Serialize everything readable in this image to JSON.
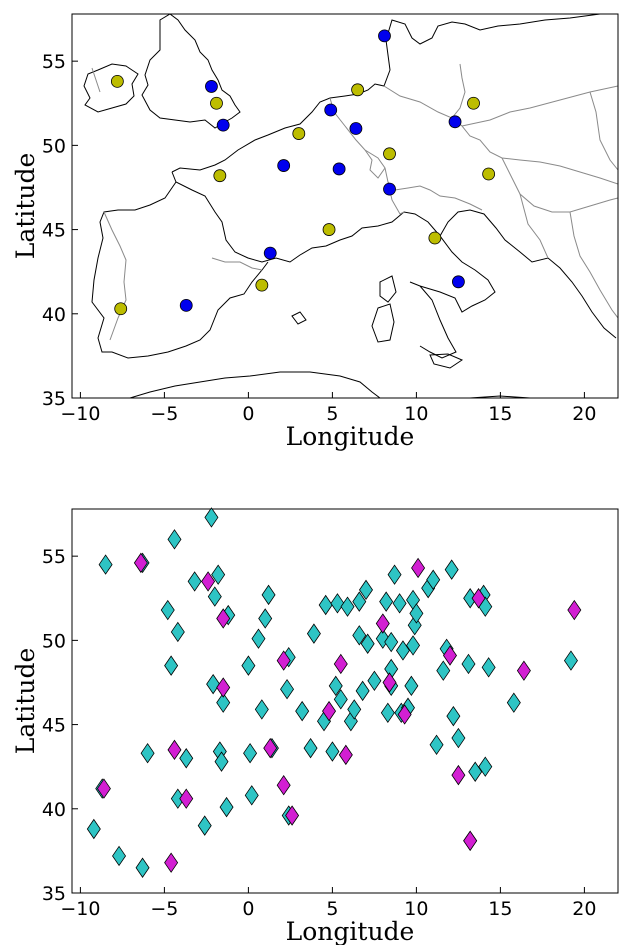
{
  "chart_data": [
    {
      "type": "scatter",
      "title": "",
      "xlabel": "Longitude",
      "ylabel": "Latitude",
      "xlim": [
        -10.5,
        22
      ],
      "ylim": [
        35,
        57.8
      ],
      "xticks": [
        "−10",
        "−5",
        "0",
        "5",
        "10",
        "15",
        "20"
      ],
      "yticks": [
        "35",
        "40",
        "45",
        "50",
        "55"
      ],
      "background_map": "Western and Central Europe coastlines (black) and national borders (grey)",
      "series": [
        {
          "marker": "circle",
          "color": "#0000ee",
          "points": [
            [
              -2.2,
              53.5
            ],
            [
              -1.5,
              51.2
            ],
            [
              2.1,
              48.8
            ],
            [
              4.9,
              52.1
            ],
            [
              6.4,
              51.0
            ],
            [
              8.1,
              56.5
            ],
            [
              12.3,
              51.4
            ],
            [
              5.4,
              48.6
            ],
            [
              8.4,
              47.4
            ],
            [
              1.3,
              43.6
            ],
            [
              -3.7,
              40.5
            ],
            [
              12.5,
              41.9
            ]
          ]
        },
        {
          "marker": "circle",
          "color": "#bdbd00",
          "points": [
            [
              -7.8,
              53.8
            ],
            [
              -1.9,
              52.5
            ],
            [
              6.5,
              53.3
            ],
            [
              13.4,
              52.5
            ],
            [
              3.0,
              50.7
            ],
            [
              8.4,
              49.5
            ],
            [
              -1.7,
              48.2
            ],
            [
              14.3,
              48.3
            ],
            [
              4.8,
              45.0
            ],
            [
              11.1,
              44.5
            ],
            [
              0.8,
              41.7
            ],
            [
              -7.6,
              40.3
            ]
          ]
        }
      ]
    },
    {
      "type": "scatter",
      "title": "",
      "xlabel": "Longitude",
      "ylabel": "Latitude",
      "xlim": [
        -10.5,
        22
      ],
      "ylim": [
        35,
        57.8
      ],
      "xticks": [
        "−10",
        "−5",
        "0",
        "5",
        "10",
        "15",
        "20"
      ],
      "yticks": [
        "35",
        "40",
        "45",
        "50",
        "55"
      ],
      "background_map": "Western and Central Europe coastlines (black) and national borders (grey)",
      "series": [
        {
          "marker": "diamond",
          "color": "#2ec4c4",
          "points": [
            [
              -8.5,
              54.5
            ],
            [
              -6.3,
              54.6
            ],
            [
              -4.4,
              56.0
            ],
            [
              -2.2,
              57.3
            ],
            [
              -3.2,
              53.5
            ],
            [
              -1.8,
              53.9
            ],
            [
              -2.0,
              52.6
            ],
            [
              -4.8,
              51.8
            ],
            [
              -4.2,
              50.5
            ],
            [
              -1.2,
              51.5
            ],
            [
              1.2,
              52.7
            ],
            [
              1.0,
              51.3
            ],
            [
              0.6,
              50.1
            ],
            [
              -4.6,
              48.5
            ],
            [
              -2.1,
              47.4
            ],
            [
              -1.5,
              46.3
            ],
            [
              0.0,
              48.5
            ],
            [
              2.4,
              49.0
            ],
            [
              2.3,
              47.1
            ],
            [
              0.8,
              45.9
            ],
            [
              0.1,
              43.3
            ],
            [
              1.4,
              43.6
            ],
            [
              3.9,
              50.4
            ],
            [
              4.6,
              52.1
            ],
            [
              5.3,
              52.2
            ],
            [
              5.9,
              52.0
            ],
            [
              6.6,
              52.3
            ],
            [
              7.0,
              53.0
            ],
            [
              8.2,
              52.3
            ],
            [
              9.0,
              52.2
            ],
            [
              9.8,
              52.4
            ],
            [
              8.7,
              53.9
            ],
            [
              10.7,
              53.1
            ],
            [
              11.0,
              53.6
            ],
            [
              12.1,
              54.2
            ],
            [
              13.2,
              52.5
            ],
            [
              14.0,
              52.7
            ],
            [
              14.1,
              52.0
            ],
            [
              6.6,
              50.3
            ],
            [
              7.1,
              49.8
            ],
            [
              8.0,
              50.1
            ],
            [
              8.5,
              49.9
            ],
            [
              9.2,
              49.4
            ],
            [
              9.8,
              49.7
            ],
            [
              9.9,
              50.9
            ],
            [
              10.0,
              51.6
            ],
            [
              11.8,
              49.5
            ],
            [
              11.6,
              48.2
            ],
            [
              13.1,
              48.6
            ],
            [
              14.3,
              48.4
            ],
            [
              15.8,
              46.3
            ],
            [
              12.2,
              45.5
            ],
            [
              11.2,
              43.8
            ],
            [
              12.5,
              44.2
            ],
            [
              13.5,
              42.2
            ],
            [
              14.1,
              42.5
            ],
            [
              8.5,
              47.3
            ],
            [
              7.5,
              47.6
            ],
            [
              8.5,
              48.3
            ],
            [
              9.7,
              47.3
            ],
            [
              8.3,
              45.7
            ],
            [
              9.1,
              45.7
            ],
            [
              9.5,
              46.0
            ],
            [
              6.1,
              45.2
            ],
            [
              5.5,
              46.5
            ],
            [
              6.3,
              45.9
            ],
            [
              6.8,
              47.0
            ],
            [
              5.2,
              47.3
            ],
            [
              3.2,
              45.8
            ],
            [
              5.0,
              43.4
            ],
            [
              3.7,
              43.6
            ],
            [
              4.5,
              45.2
            ],
            [
              -1.7,
              43.4
            ],
            [
              -3.7,
              43.0
            ],
            [
              -6.0,
              43.3
            ],
            [
              -8.7,
              41.2
            ],
            [
              -9.2,
              38.8
            ],
            [
              -7.7,
              37.2
            ],
            [
              -6.3,
              36.5
            ],
            [
              -4.2,
              40.6
            ],
            [
              -2.6,
              39.0
            ],
            [
              -1.3,
              40.1
            ],
            [
              0.2,
              40.8
            ],
            [
              -1.6,
              42.8
            ],
            [
              2.4,
              39.6
            ],
            [
              13.2,
              38.1
            ],
            [
              19.2,
              48.8
            ]
          ]
        },
        {
          "marker": "diamond",
          "color": "#d21fd2",
          "points": [
            [
              -6.4,
              54.6
            ],
            [
              -2.4,
              53.5
            ],
            [
              -1.5,
              51.3
            ],
            [
              -1.5,
              47.2
            ],
            [
              2.1,
              48.8
            ],
            [
              5.5,
              48.6
            ],
            [
              8.0,
              51.0
            ],
            [
              10.1,
              54.3
            ],
            [
              12.0,
              49.1
            ],
            [
              8.4,
              47.5
            ],
            [
              9.3,
              45.6
            ],
            [
              4.8,
              45.8
            ],
            [
              5.8,
              43.2
            ],
            [
              16.4,
              48.2
            ],
            [
              19.4,
              51.8
            ],
            [
              13.7,
              52.5
            ],
            [
              12.5,
              42.0
            ],
            [
              13.2,
              38.1
            ],
            [
              -4.4,
              43.5
            ],
            [
              -3.7,
              40.6
            ],
            [
              -8.6,
              41.2
            ],
            [
              -4.6,
              36.8
            ],
            [
              1.3,
              43.6
            ],
            [
              2.1,
              41.4
            ],
            [
              2.6,
              39.6
            ]
          ]
        }
      ]
    }
  ]
}
